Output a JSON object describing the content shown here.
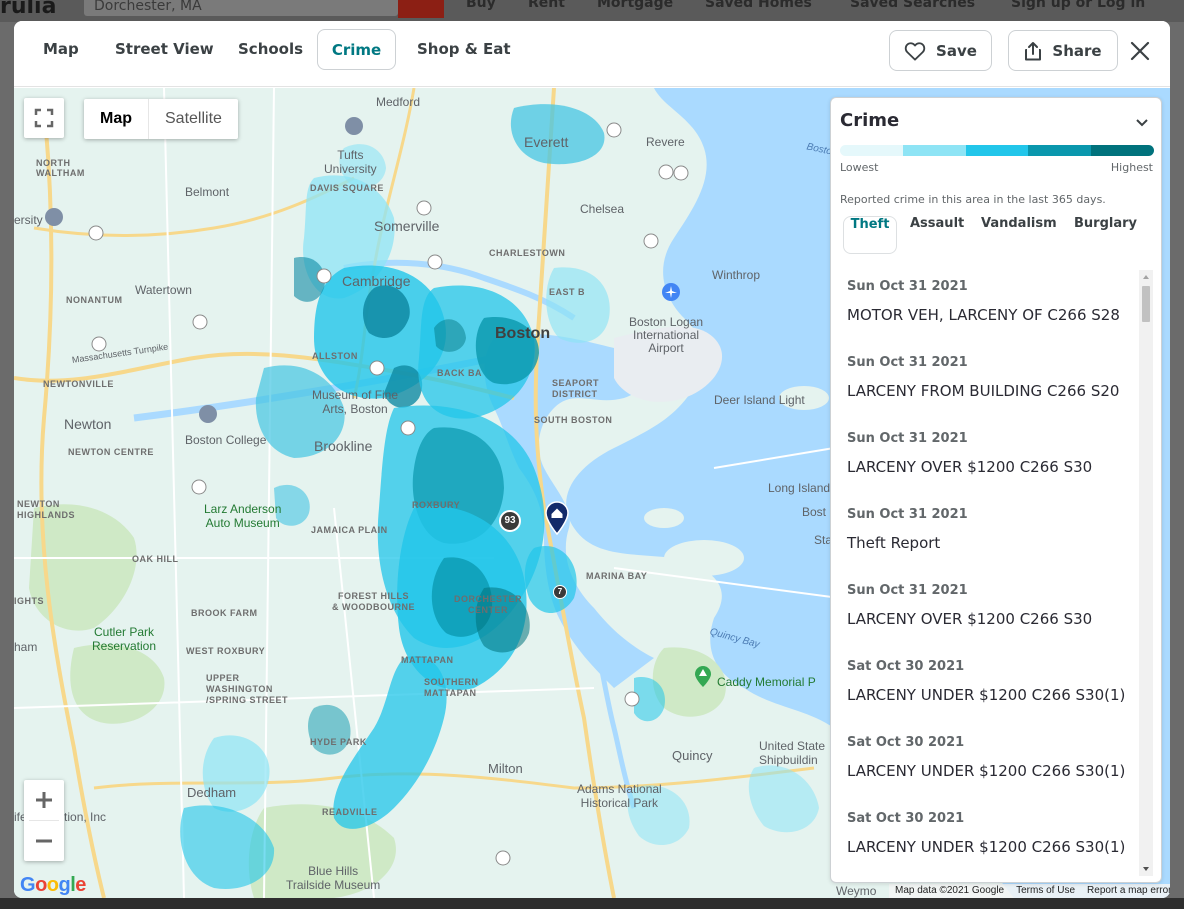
{
  "background": {
    "logo": "rulia",
    "search_value": "Dorchester, MA",
    "nav": [
      "Buy",
      "Rent",
      "Mortgage",
      "Saved Homes",
      "Saved Searches",
      "Sign up or Log in"
    ]
  },
  "header": {
    "tabs": [
      "Map",
      "Street View",
      "Schools",
      "Crime",
      "Shop & Eat"
    ],
    "active_tab": "Crime",
    "save_label": "Save",
    "share_label": "Share"
  },
  "map": {
    "maptype": {
      "map": "Map",
      "satellite": "Satellite",
      "selected": "Map"
    },
    "attribution": {
      "data": "Map data ©2021 Google",
      "terms": "Terms of Use",
      "report": "Report a map error"
    },
    "google_logo": "Google",
    "markers": {
      "cluster_large": "93",
      "cluster_small": "7"
    },
    "labels": {
      "medford": "Medford",
      "north_waltham": "NORTH\nWALTHAM",
      "tufts": "Tufts\nUniversity",
      "everett": "Everett",
      "revere": "Revere",
      "davis_square": "DAVIS SQUARE",
      "belmont": "Belmont",
      "somerville": "Somerville",
      "chelsea": "Chelsea",
      "charlestown": "CHARLESTOWN",
      "watertown": "Watertown",
      "cambridge": "Cambridge",
      "winthrop": "Winthrop",
      "east_boston": "EAST B",
      "nonantum": "NONANTUM",
      "mass_turnpike": "Massachusetts Turnpike",
      "boston": "Boston",
      "logan": "Boston Logan\nInternational\nAirport",
      "newtonville": "NEWTONVILLE",
      "allston": "ALLSTON",
      "back_bay": "BACK BA",
      "seaport": "SEAPORT\nDISTRICT",
      "mfa": "Museum of Fine\nArts, Boston",
      "deer_island": "Deer Island Light",
      "newton": "Newton",
      "boston_college": "Boston College",
      "brookline": "Brookline",
      "south_boston": "SOUTH BOSTON",
      "newton_centre": "NEWTON CENTRE",
      "long_island": "Long Island",
      "larz": "Larz Anderson\nAuto Museum",
      "newton_highlands": "NEWTON\nHIGHLANDS",
      "roxbury": "ROXBURY",
      "jamaica_plain": "JAMAICA PLAIN",
      "oak_hill": "OAK HILL",
      "marina_bay": "MARINA BAY",
      "brook_farm": "BROOK FARM",
      "forest_hills": "FOREST HILLS\n& WOODBOURNE",
      "dorchester_center": "DORCHESTER\nCENTER",
      "cutler": "Cutler Park\nReservation",
      "west_roxbury": "WEST ROXBURY",
      "quincy_bay": "Quincy Bay",
      "mattapan": "MATTAPAN",
      "upper_washington": "UPPER\nWASHINGTON\n/SPRING STREET",
      "southern_mattapan": "SOUTHERN\nMATTAPAN",
      "caddy": "Caddy Memorial P",
      "hyde_park": "HYDE PARK",
      "milton": "Milton",
      "quincy": "Quincy",
      "us_shipbuilding": "United State\nShipbuildin",
      "dedham": "Dedham",
      "readville": "READVILLE",
      "adams": "Adams National\nHistorical Park",
      "life_education": "ife Education, Inc",
      "blue_hills": "Blue Hills\nTrailside Museum",
      "weymouth": "Weymo",
      "boston_harbor": "Boston Harbor",
      "ham": "ham",
      "ghts": "IGHTS",
      "ersity": "ersity",
      "boston_label_right": "Bost",
      "sta": "Sta"
    }
  },
  "crime_panel": {
    "title": "Crime",
    "legend_low": "Lowest",
    "legend_high": "Highest",
    "legend_colors": [
      "#e5f8fb",
      "#8ee4f5",
      "#22c6ea",
      "#0a97ad",
      "#00727c"
    ],
    "description": "Reported crime in this area in the last 365 days.",
    "tabs": [
      "Theft",
      "Assault",
      "Vandalism",
      "Burglary"
    ],
    "active_tab": "Theft",
    "items": [
      {
        "date": "Sun Oct 31 2021",
        "text": "MOTOR VEH, LARCENY OF C266 S28"
      },
      {
        "date": "Sun Oct 31 2021",
        "text": "LARCENY FROM BUILDING C266 S20"
      },
      {
        "date": "Sun Oct 31 2021",
        "text": "LARCENY OVER $1200 C266 S30"
      },
      {
        "date": "Sun Oct 31 2021",
        "text": "Theft Report"
      },
      {
        "date": "Sun Oct 31 2021",
        "text": "LARCENY OVER $1200 C266 S30"
      },
      {
        "date": "Sat Oct 30 2021",
        "text": "LARCENY UNDER $1200 C266 S30(1)"
      },
      {
        "date": "Sat Oct 30 2021",
        "text": "LARCENY UNDER $1200 C266 S30(1)"
      },
      {
        "date": "Sat Oct 30 2021",
        "text": "LARCENY UNDER $1200 C266 S30(1)"
      }
    ]
  }
}
